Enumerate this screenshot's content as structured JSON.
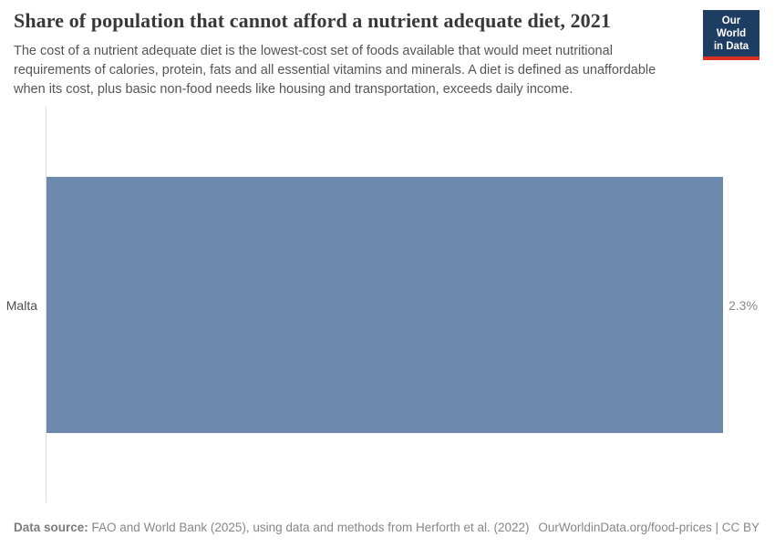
{
  "header": {
    "title": "Share of population that cannot afford a nutrient adequate diet, 2021",
    "subtitle": "The cost of a nutrient adequate diet is the lowest-cost set of foods available that would meet nutritional requirements of calories, protein, fats and all essential vitamins and minerals. A diet is defined as unaffordable when its cost, plus basic non-food needs like housing and transportation, exceeds daily income."
  },
  "logo": {
    "line1": "Our World",
    "line2": "in Data",
    "bg_color": "#1d3d63",
    "accent_color": "#dc3022"
  },
  "chart_data": {
    "type": "bar",
    "orientation": "horizontal",
    "categories": [
      "Malta"
    ],
    "values": [
      2.3
    ],
    "value_labels": [
      "2.3%"
    ],
    "series": [
      {
        "name": "Share of population that cannot afford a nutrient adequate diet",
        "values": [
          2.3
        ]
      }
    ],
    "title": "Share of population that cannot afford a nutrient adequate diet, 2021",
    "xlabel": "",
    "ylabel": "",
    "xlim": [
      0,
      2.3
    ],
    "grid": false,
    "legend": false,
    "bar_color": "#6d89ad",
    "axis_line_color": "#dedede"
  },
  "footer": {
    "source_label": "Data source:",
    "source_text": " FAO and World Bank (2025), using data and methods from Herforth et al. (2022)",
    "right_text": "OurWorldinData.org/food-prices | CC BY"
  }
}
